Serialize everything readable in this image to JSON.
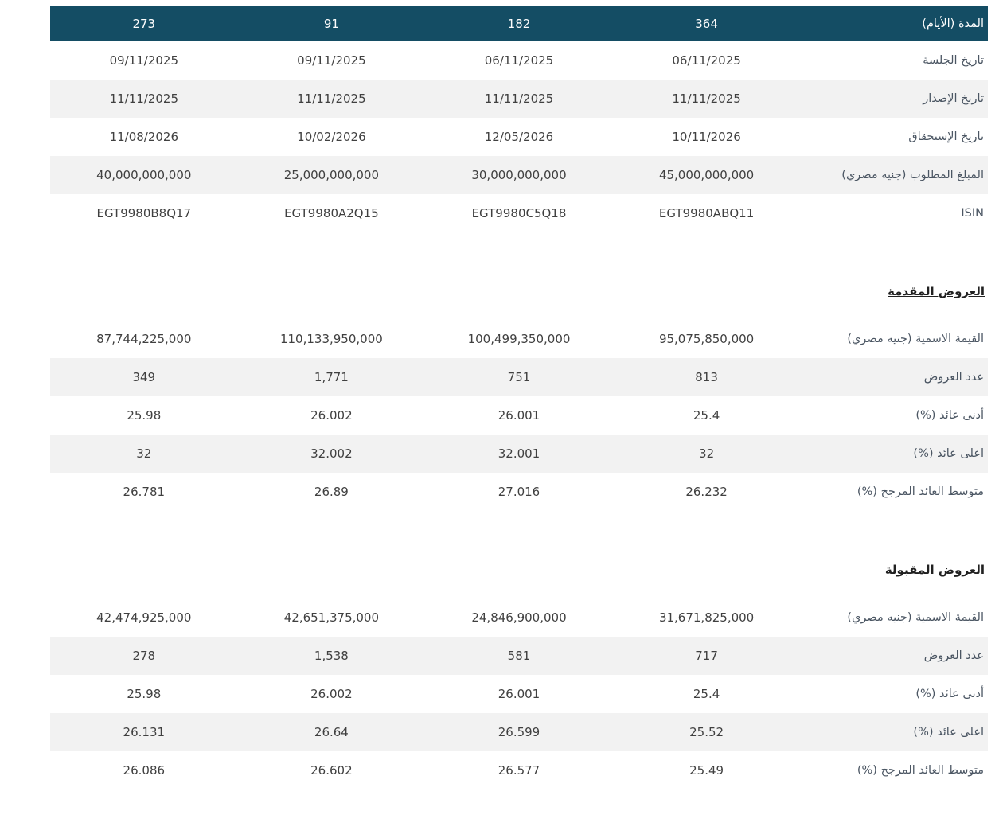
{
  "theme": {
    "header_bg": "#144d64",
    "header_text": "#fdfdfd",
    "stripe_bg": "#f2f2f2",
    "value_text": "#404040",
    "label_text": "#4b5663"
  },
  "table": {
    "header": {
      "label": "المدة (الأيام)",
      "columns": [
        "273",
        "91",
        "182",
        "364"
      ]
    },
    "info_rows": [
      {
        "label": "تاريخ الجلسة",
        "values": [
          "09/11/2025",
          "09/11/2025",
          "06/11/2025",
          "06/11/2025"
        ]
      },
      {
        "label": "تاريخ الإصدار",
        "values": [
          "11/11/2025",
          "11/11/2025",
          "11/11/2025",
          "11/11/2025"
        ]
      },
      {
        "label": "تاريخ الإستحقاق",
        "values": [
          "11/08/2026",
          "10/02/2026",
          "12/05/2026",
          "10/11/2026"
        ]
      },
      {
        "label": "المبلغ المطلوب (جنيه مصري)",
        "values": [
          "40,000,000,000",
          "25,000,000,000",
          "30,000,000,000",
          "45,000,000,000"
        ]
      },
      {
        "label": "ISIN",
        "values": [
          "EGT9980B8Q17",
          "EGT9980A2Q15",
          "EGT9980C5Q18",
          "EGT9980ABQ11"
        ]
      }
    ],
    "submitted_section": {
      "title": "العروض المقدمة",
      "rows": [
        {
          "label": "القيمة الاسمية (جنيه مصري)",
          "values": [
            "87,744,225,000",
            "110,133,950,000",
            "100,499,350,000",
            "95,075,850,000"
          ]
        },
        {
          "label": "عدد العروض",
          "values": [
            "349",
            "1,771",
            "751",
            "813"
          ]
        },
        {
          "label": "أدنى عائد (%)",
          "values": [
            "25.98",
            "26.002",
            "26.001",
            "25.4"
          ]
        },
        {
          "label": "اعلى عائد (%)",
          "values": [
            "32",
            "32.002",
            "32.001",
            "32"
          ]
        },
        {
          "label": "متوسط العائد المرجح (%)",
          "values": [
            "26.781",
            "26.89",
            "27.016",
            "26.232"
          ]
        }
      ]
    },
    "accepted_section": {
      "title": "العروض المقبولة",
      "rows": [
        {
          "label": "القيمة الاسمية (جنيه مصري)",
          "values": [
            "42,474,925,000",
            "42,651,375,000",
            "24,846,900,000",
            "31,671,825,000"
          ]
        },
        {
          "label": "عدد العروض",
          "values": [
            "278",
            "1,538",
            "581",
            "717"
          ]
        },
        {
          "label": "أدنى عائد (%)",
          "values": [
            "25.98",
            "26.002",
            "26.001",
            "25.4"
          ]
        },
        {
          "label": "اعلى عائد (%)",
          "values": [
            "26.131",
            "26.64",
            "26.599",
            "25.52"
          ]
        },
        {
          "label": "متوسط العائد المرجح (%)",
          "values": [
            "26.086",
            "26.602",
            "26.577",
            "25.49"
          ]
        }
      ]
    }
  }
}
